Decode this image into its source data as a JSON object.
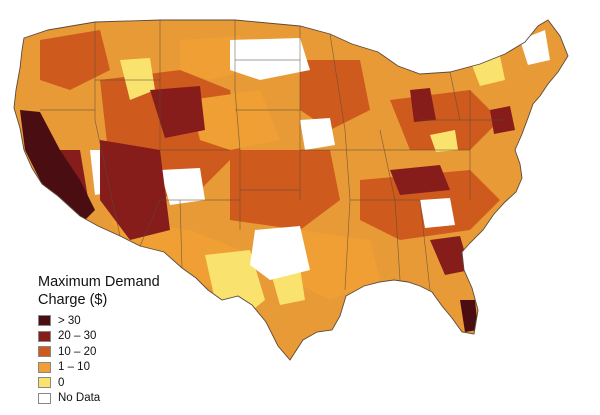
{
  "legend": {
    "title_line1": "Maximum Demand",
    "title_line2": "Charge ($)",
    "items": [
      {
        "label": "> 30",
        "color": "#4a0d12"
      },
      {
        "label": "20 – 30",
        "color": "#861d1b"
      },
      {
        "label": "10 – 20",
        "color": "#cf5a1d"
      },
      {
        "label": "1 – 10",
        "color": "#ef9f33"
      },
      {
        "label": "0",
        "color": "#f9e36e"
      },
      {
        "label": "No Data",
        "color": "#ffffff"
      }
    ]
  },
  "colors": {
    "state_border": "#5b4a3a",
    "land_base": "#e89a36",
    "water": "#ffffff"
  }
}
